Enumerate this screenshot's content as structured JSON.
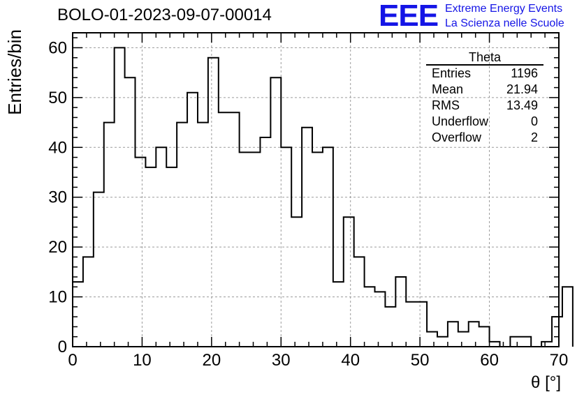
{
  "title": "BOLO-01-2023-09-07-00014",
  "logo": {
    "mark": "EEE",
    "line1": "Extreme Energy Events",
    "line2": "La Scienza nelle Scuole",
    "color": "#1515e6"
  },
  "stats": {
    "name": "Theta",
    "rows": [
      {
        "label": "Entries",
        "value": "1196"
      },
      {
        "label": "Mean",
        "value": "21.94"
      },
      {
        "label": "RMS",
        "value": "13.49"
      },
      {
        "label": "Underflow",
        "value": "0"
      },
      {
        "label": "Overflow",
        "value": "2"
      }
    ]
  },
  "chart_data": {
    "type": "bar",
    "style": "step-histogram",
    "xlabel": "θ [°]",
    "ylabel": "Entries/bin",
    "xlim": [
      0,
      70
    ],
    "ylim": [
      0,
      63
    ],
    "bin_width": 1.5,
    "x_ticks": [
      0,
      10,
      20,
      30,
      40,
      50,
      60,
      70
    ],
    "y_ticks": [
      0,
      10,
      20,
      30,
      40,
      50,
      60
    ],
    "grid": true,
    "values": [
      13,
      18,
      31,
      45,
      60,
      54,
      38,
      36,
      40,
      36,
      45,
      51,
      45,
      58,
      47,
      47,
      39,
      39,
      42,
      54,
      40,
      26,
      44,
      39,
      40,
      13,
      26,
      18,
      12,
      11,
      8,
      14,
      9,
      9,
      3,
      2,
      5,
      3,
      5,
      4,
      1,
      0,
      2,
      2,
      0,
      1,
      6,
      12
    ]
  }
}
